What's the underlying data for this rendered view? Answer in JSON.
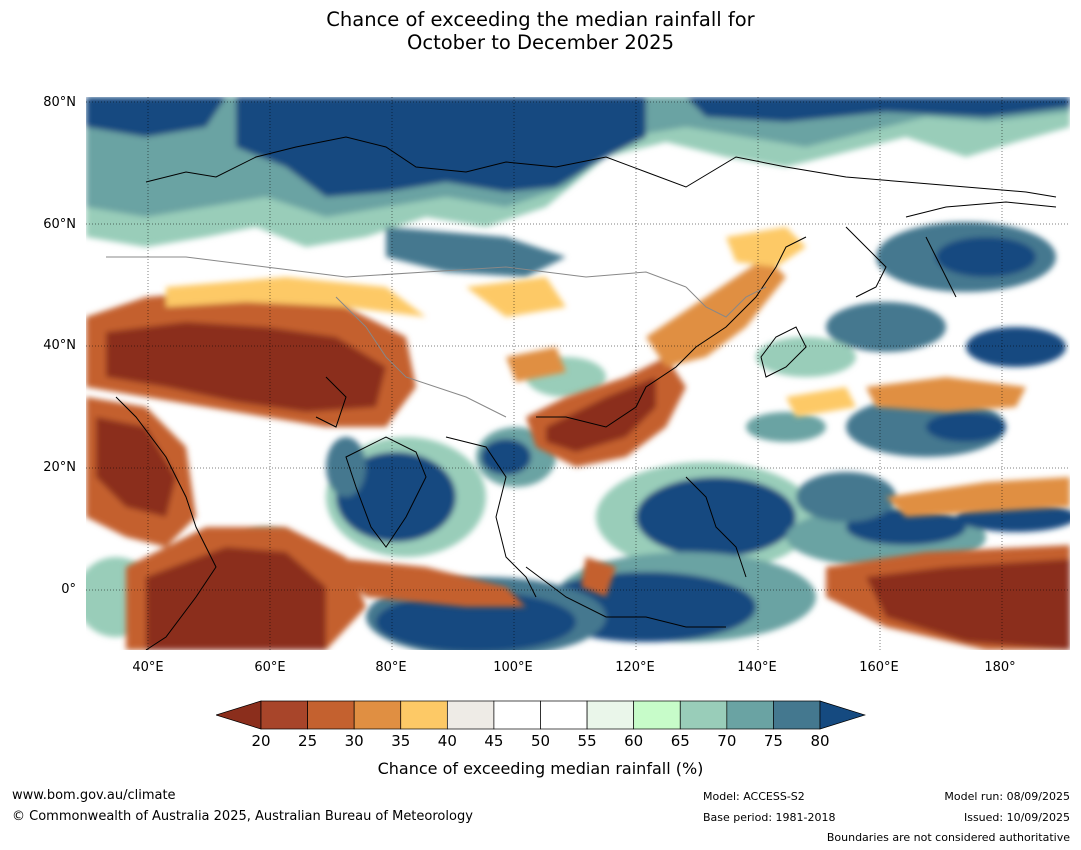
{
  "title": {
    "line1": "Chance of exceeding the median rainfall for",
    "line2": "October to December 2025"
  },
  "map": {
    "lat_ticks": [
      "80°N",
      "60°N",
      "40°N",
      "20°N",
      "0°"
    ],
    "lon_ticks": [
      "40°E",
      "60°E",
      "80°E",
      "100°E",
      "120°E",
      "140°E",
      "160°E",
      "180°"
    ],
    "lon_range": [
      30,
      191
    ],
    "lat_range": [
      -10,
      80
    ]
  },
  "colorbar": {
    "ticks": [
      "20",
      "25",
      "30",
      "35",
      "40",
      "45",
      "50",
      "55",
      "60",
      "65",
      "70",
      "75",
      "80"
    ],
    "colors": [
      "#8b2e1c",
      "#a8452a",
      "#c4612f",
      "#e08f42",
      "#fdc966",
      "#eeebe6",
      "#ffffff",
      "#ffffff",
      "#eaf6ea",
      "#c7fcc9",
      "#99cdb9",
      "#6aa3a3",
      "#44788f",
      "#154a80"
    ],
    "label": "Chance of exceeding median rainfall (%)"
  },
  "footer": {
    "url": "www.bom.gov.au/climate",
    "copyright": "© Commonwealth of Australia 2025, Australian Bureau of Meteorology",
    "model": "Model: ACCESS-S2",
    "base_period": "Base period: 1981-2018",
    "model_run": "Model run: 08/09/2025",
    "issued": "Issued: 10/09/2025",
    "disclaimer": "Boundaries are not considered authoritative"
  }
}
